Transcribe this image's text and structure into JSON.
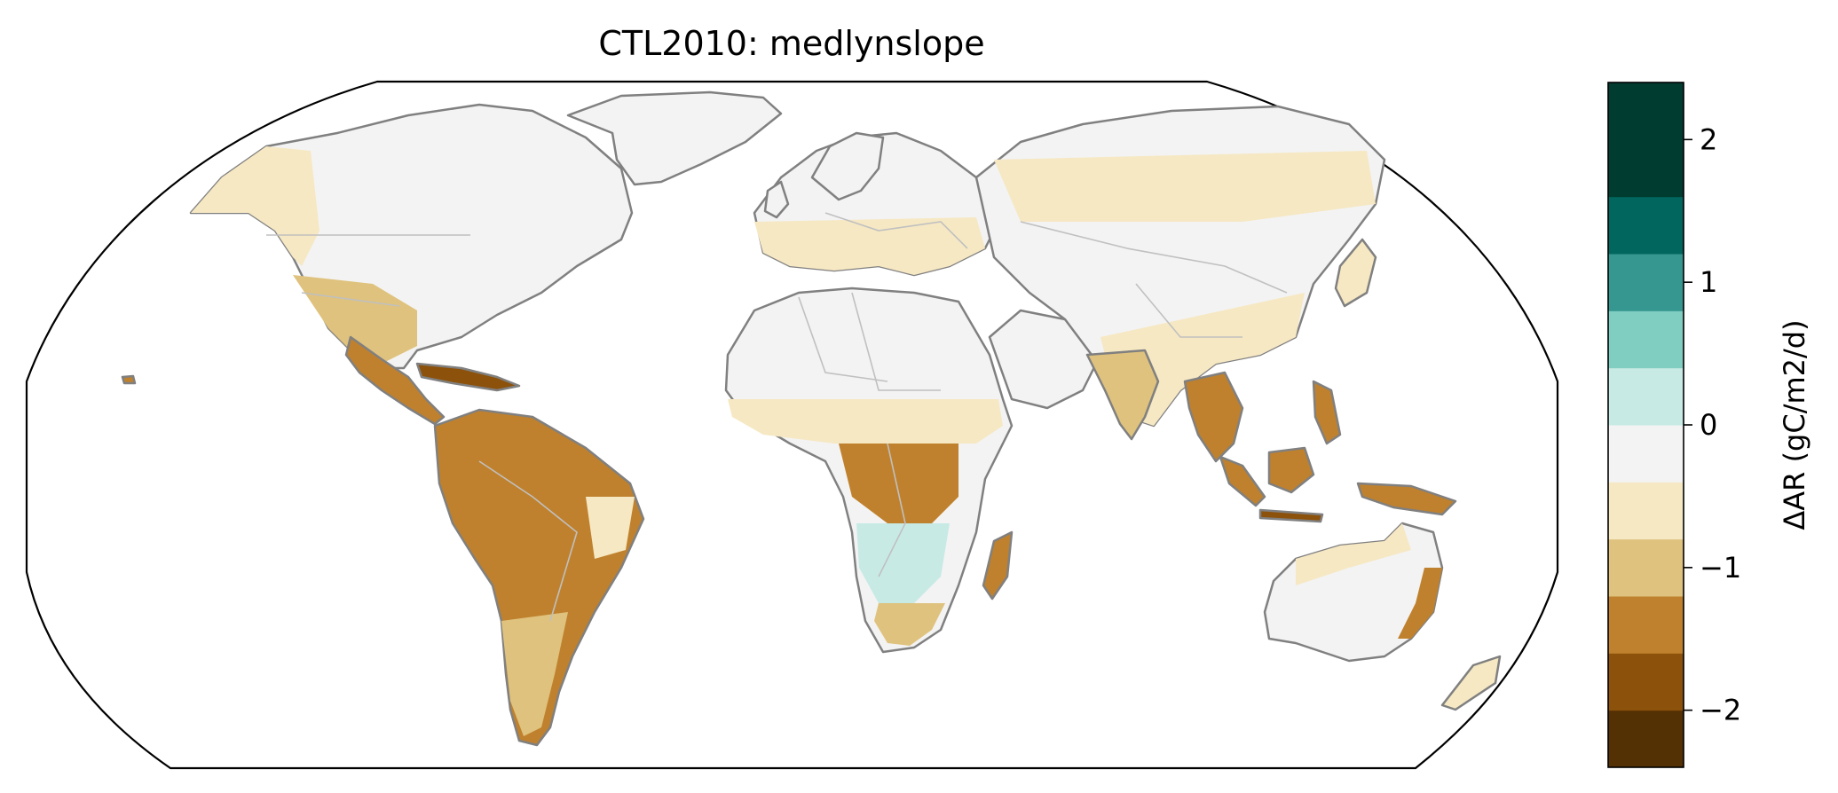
{
  "title": "CTL2010: medlynslope",
  "map": {
    "projection": "Robinson",
    "variable": "ΔAR",
    "ocean_color": "#ffffff",
    "coastline_color": "#808080",
    "border_color": "#c0c0c0"
  },
  "colorbar": {
    "label": "ΔAR (gC/m2/d)",
    "range": [
      -2.4,
      2.4
    ],
    "levels": [
      -2.4,
      -2.0,
      -1.6,
      -1.2,
      -0.8,
      -0.4,
      0.0,
      0.4,
      0.8,
      1.2,
      1.6,
      2.0,
      2.4
    ],
    "colors": [
      "#543005",
      "#8c510a",
      "#bf812d",
      "#dfc27d",
      "#f6e8c3",
      "#f3f3f3",
      "#c7eae5",
      "#80cdc1",
      "#35978f",
      "#01665e",
      "#003c30",
      "#003c30"
    ],
    "ticks": [
      {
        "value": -2,
        "label": "−2"
      },
      {
        "value": -1,
        "label": "−1"
      },
      {
        "value": 0,
        "label": "0"
      },
      {
        "value": 1,
        "label": "1"
      },
      {
        "value": 2,
        "label": "2"
      }
    ]
  }
}
